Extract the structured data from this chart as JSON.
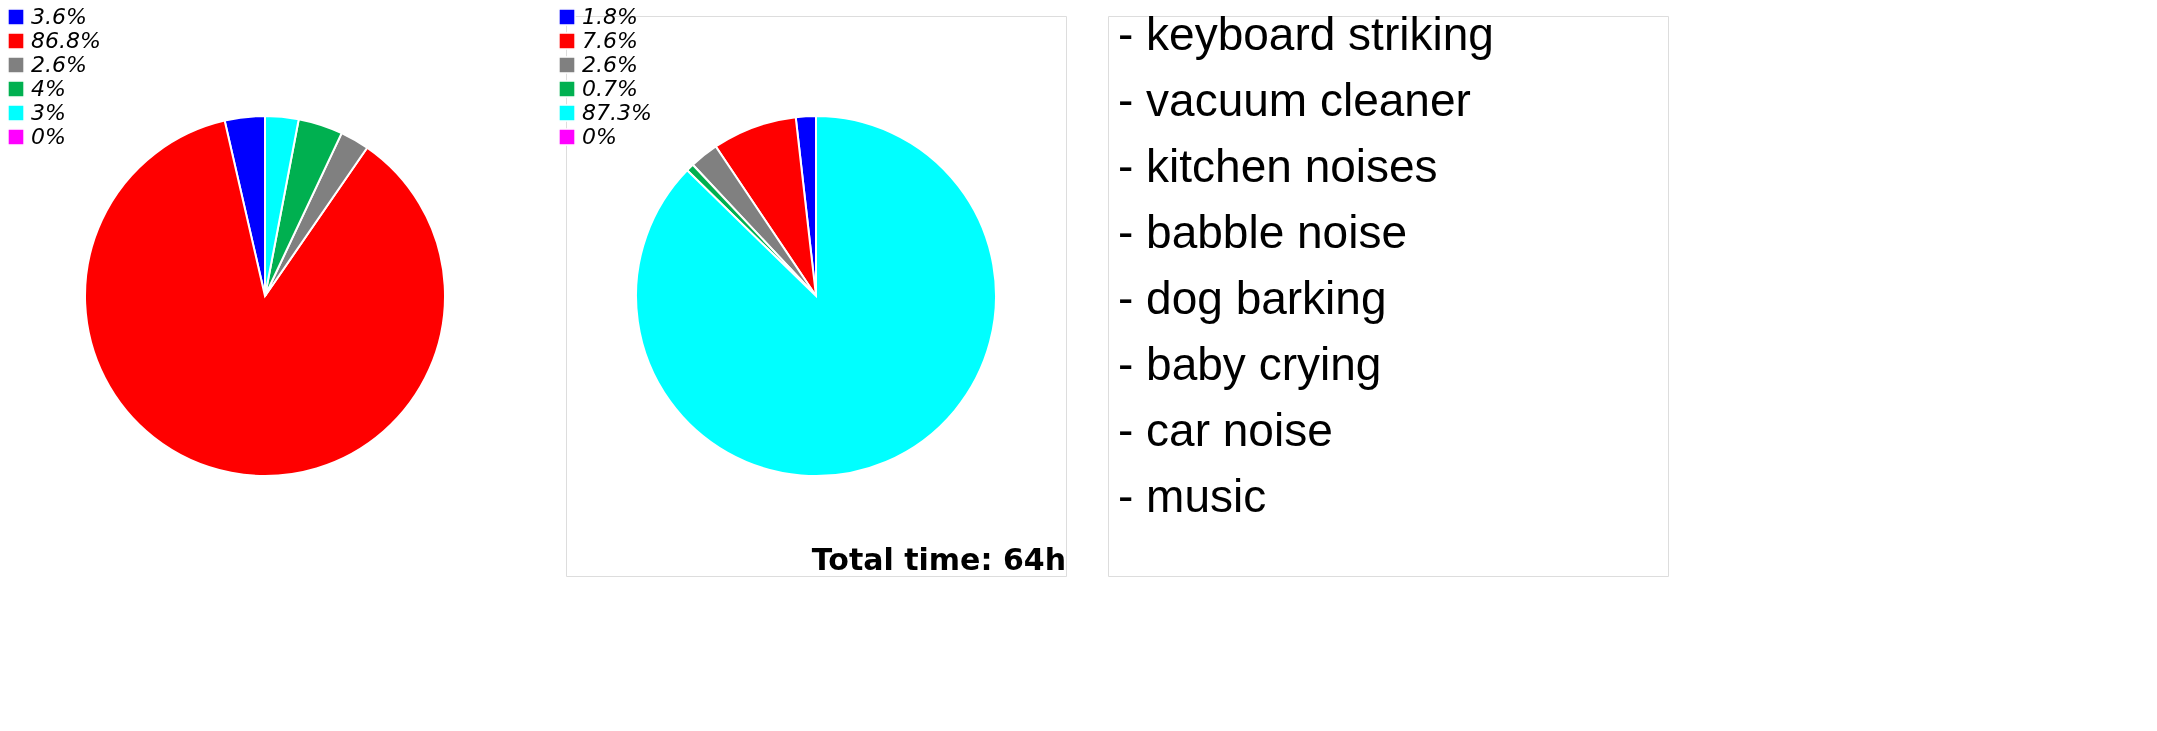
{
  "chart_data": [
    {
      "type": "pie",
      "categories": [
        "3.6%",
        "86.8%",
        "2.6%",
        "4%",
        "3%",
        "0%"
      ],
      "values": [
        3.6,
        86.8,
        2.6,
        4,
        3,
        0
      ],
      "colors": [
        "#0000ff",
        "#ff0000",
        "#808080",
        "#00b050",
        "#00ffff",
        "#ff00ff"
      ],
      "legend": "top left"
    },
    {
      "type": "pie",
      "categories": [
        "1.8%",
        "7.6%",
        "2.6%",
        "0.7%",
        "87.3%",
        "0%"
      ],
      "values": [
        1.8,
        7.6,
        2.6,
        0.7,
        87.3,
        0
      ],
      "colors": [
        "#0000ff",
        "#ff0000",
        "#808080",
        "#00b050",
        "#00ffff",
        "#ff00ff"
      ],
      "legend": "top left",
      "annotations": [
        "Total time: 64h"
      ]
    },
    {
      "type": "other",
      "annotations": [
        "- keyboard striking",
        "- vacuum cleaner",
        "- kitchen noises",
        "- babble noise",
        "- dog barking",
        "- baby crying",
        "- car noise",
        "- music"
      ]
    }
  ]
}
